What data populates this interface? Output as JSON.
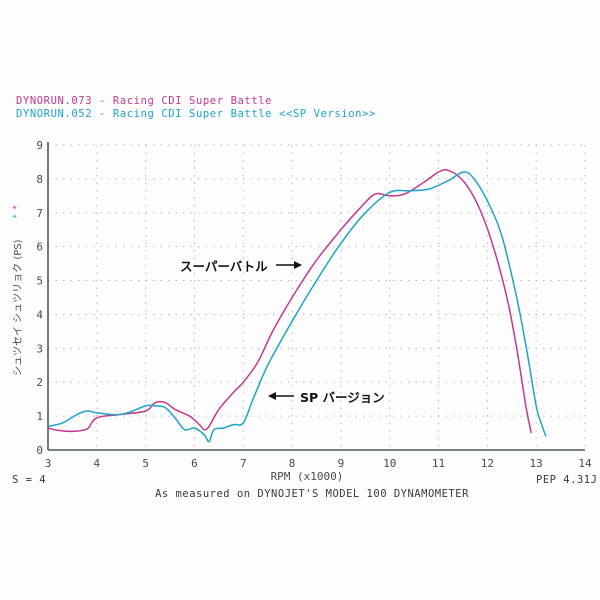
{
  "legend": {
    "series1": "DYNORUN.073 - Racing CDI Super Battle",
    "series2": "DYNORUN.052 - Racing CDI Super Battle <<SP Version>>"
  },
  "colors": {
    "series1": "#c2398e",
    "series2": "#1fa3c8",
    "axis": "#4a5a66",
    "grid": "#b8b8b8"
  },
  "axes": {
    "ylabel": "シュツセイ シュツリョク (PS)",
    "xlabel": "RPM (x1000)",
    "y_ticks": [
      "0",
      "1",
      "2",
      "3",
      "4",
      "5",
      "6",
      "7",
      "8",
      "9"
    ],
    "x_ticks": [
      "3",
      "4",
      "5",
      "6",
      "7",
      "8",
      "9",
      "10",
      "11",
      "12",
      "13",
      "14"
    ]
  },
  "footer": {
    "smoothing": "S = 4",
    "pep": "PEP 4.31J",
    "measured": "As measured on DYNOJET'S MODEL 100 DYNAMOMETER"
  },
  "annotations": {
    "super_battle": "スーパーバトル",
    "sp_version": "SP バージョン"
  },
  "chart_data": {
    "type": "line",
    "title": "",
    "xlabel": "RPM (x1000)",
    "ylabel": "シュツセイ シュツリョク (PS)",
    "xlim": [
      3,
      14
    ],
    "ylim": [
      0,
      9
    ],
    "grid": true,
    "legend_position": "top-left",
    "series": [
      {
        "name": "DYNORUN.073 - Racing CDI Super Battle",
        "label": "スーパーバトル",
        "color": "#c2398e",
        "x": [
          3.0,
          3.2,
          3.5,
          3.8,
          4.0,
          4.5,
          5.0,
          5.2,
          5.4,
          5.6,
          5.9,
          6.1,
          6.2,
          6.3,
          6.5,
          6.8,
          7.0,
          7.3,
          7.6,
          8.0,
          8.5,
          9.0,
          9.4,
          9.7,
          10.0,
          10.3,
          10.7,
          11.0,
          11.2,
          11.5,
          11.8,
          12.1,
          12.4,
          12.6,
          12.8,
          12.9
        ],
        "values": [
          0.65,
          0.58,
          0.55,
          0.62,
          0.95,
          1.05,
          1.15,
          1.4,
          1.4,
          1.2,
          1.0,
          0.75,
          0.6,
          0.7,
          1.2,
          1.7,
          2.0,
          2.6,
          3.5,
          4.5,
          5.6,
          6.5,
          7.15,
          7.55,
          7.5,
          7.55,
          7.9,
          8.2,
          8.25,
          7.95,
          7.25,
          6.1,
          4.5,
          3.0,
          1.2,
          0.5
        ]
      },
      {
        "name": "DYNORUN.052 - Racing CDI Super Battle <<SP Version>>",
        "label": "SP バージョン",
        "color": "#1fa3c8",
        "x": [
          3.0,
          3.3,
          3.6,
          3.8,
          4.0,
          4.5,
          5.0,
          5.2,
          5.4,
          5.6,
          5.8,
          6.0,
          6.2,
          6.3,
          6.4,
          6.6,
          6.8,
          7.0,
          7.2,
          7.5,
          8.0,
          8.5,
          9.0,
          9.5,
          10.0,
          10.4,
          10.8,
          11.2,
          11.5,
          11.7,
          12.0,
          12.3,
          12.6,
          12.8,
          13.0,
          13.1,
          13.2
        ],
        "values": [
          0.7,
          0.8,
          1.05,
          1.15,
          1.1,
          1.05,
          1.3,
          1.3,
          1.25,
          0.95,
          0.6,
          0.65,
          0.45,
          0.25,
          0.6,
          0.65,
          0.75,
          0.8,
          1.5,
          2.5,
          3.8,
          5.0,
          6.1,
          7.0,
          7.6,
          7.65,
          7.7,
          7.95,
          8.2,
          8.05,
          7.35,
          6.3,
          4.5,
          3.0,
          1.3,
          0.8,
          0.4
        ]
      }
    ]
  }
}
